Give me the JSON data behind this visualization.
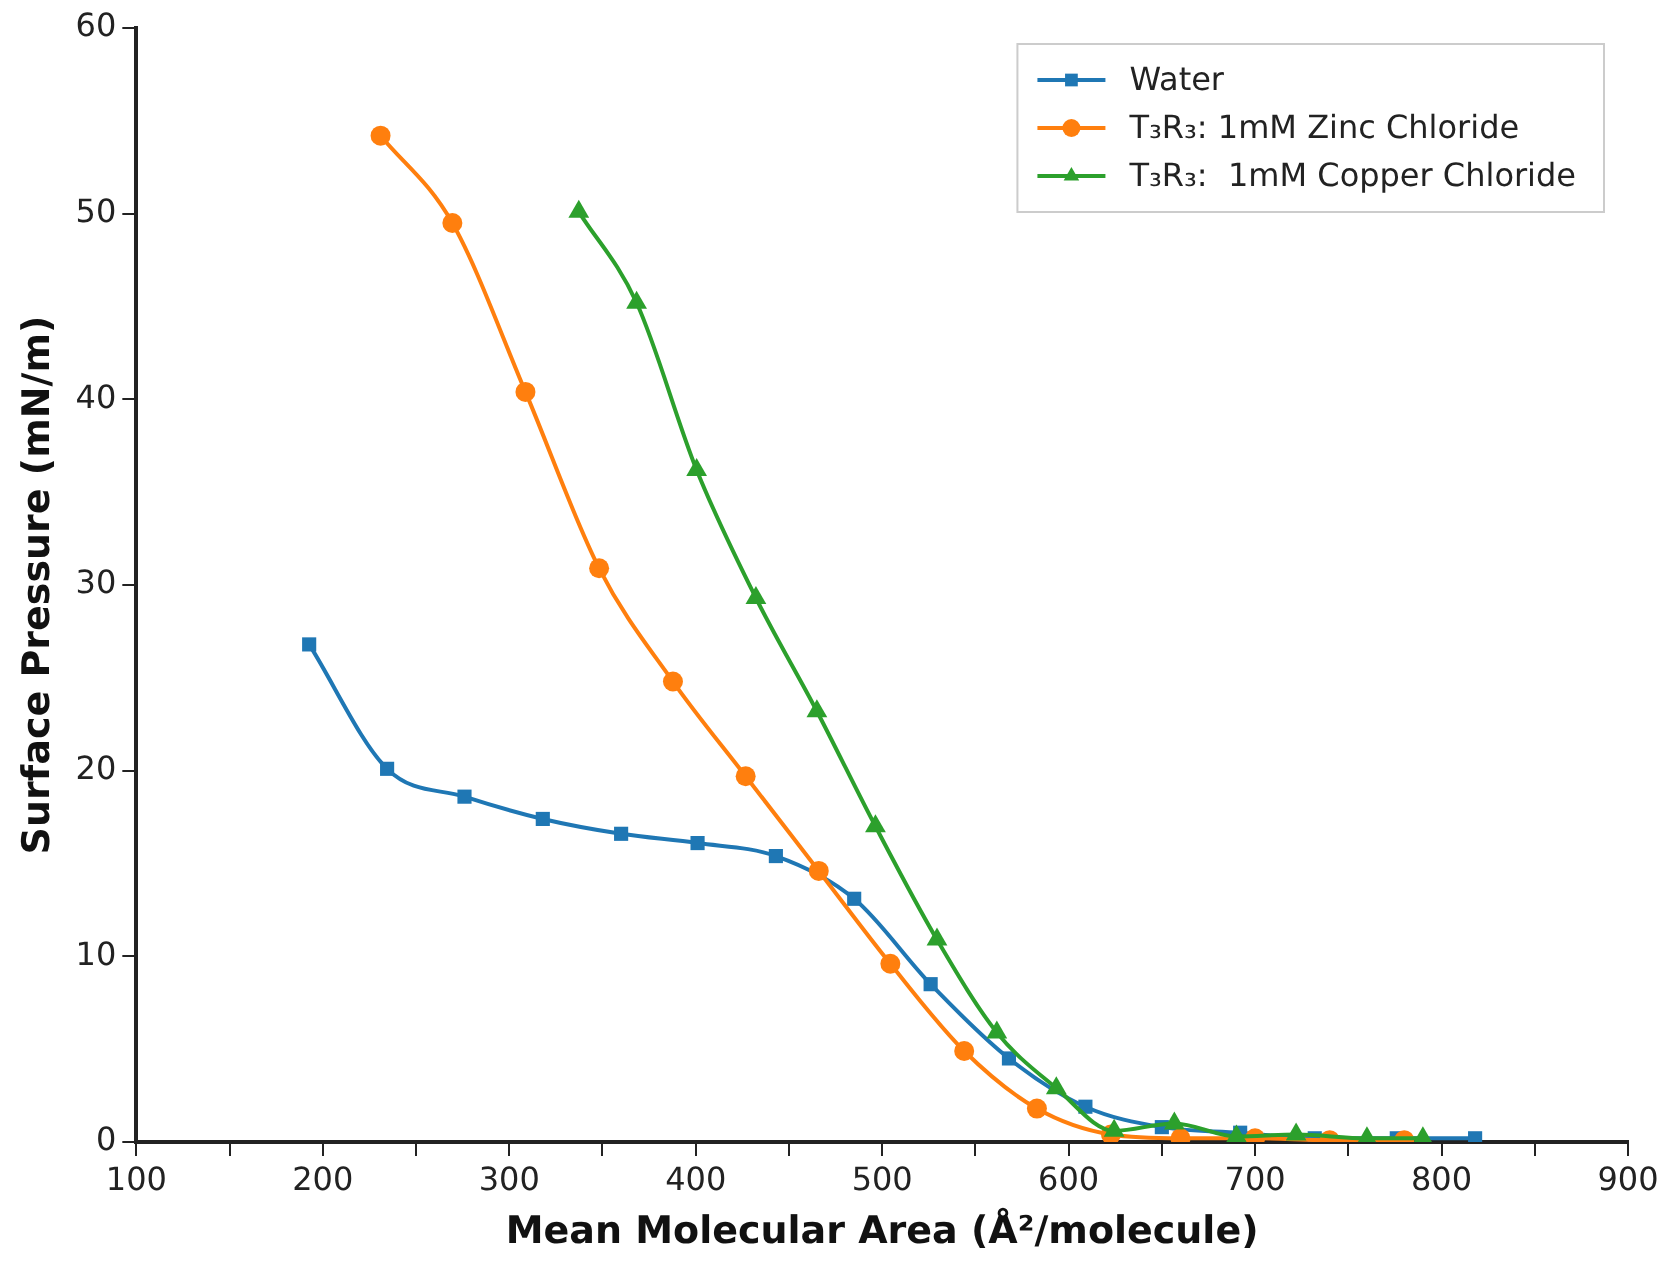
{
  "chart_data": {
    "type": "line",
    "xlabel": "Mean Molecular Area (Å²/molecule)",
    "ylabel": "Surface Pressure (mN/m)",
    "xlim": [
      100,
      900
    ],
    "ylim": [
      0,
      60
    ],
    "xticks": [
      100,
      {
        "value": 150,
        "label": null
      },
      200,
      {
        "value": 250,
        "label": null
      },
      300,
      {
        "value": 350,
        "label": null
      },
      400,
      {
        "value": 450,
        "label": null
      },
      500,
      {
        "value": 550,
        "label": null
      },
      600,
      {
        "value": 650,
        "label": null
      },
      700,
      {
        "value": 750,
        "label": null
      },
      800,
      {
        "value": 850,
        "label": null
      },
      900
    ],
    "yticks": [
      0,
      10,
      20,
      30,
      40,
      50,
      60
    ],
    "grid": false,
    "legend": "top right",
    "line_style": "solid",
    "series": [
      {
        "name": "Water",
        "color": "#1f77b4",
        "marker": "square",
        "x": [
          192.7,
          234.5,
          276,
          318,
          360,
          401,
          443,
          485,
          526,
          568,
          609,
          650,
          692,
          732,
          776,
          818
        ],
        "values": [
          26.8,
          20.1,
          18.6,
          17.4,
          16.6,
          16.1,
          15.4,
          13.1,
          8.5,
          4.5,
          1.9,
          0.8,
          0.5,
          0.2,
          0.2,
          0.2
        ]
      },
      {
        "name": "T₃R₃: 1mM Zinc Chloride",
        "color": "#ff7f0e",
        "marker": "circle",
        "x": [
          231,
          269.5,
          308.7,
          348.2,
          387.8,
          426.8,
          466,
          504.4,
          544,
          583,
          622.7,
          660,
          700,
          740,
          780
        ],
        "values": [
          54.2,
          49.5,
          40.4,
          30.9,
          24.8,
          19.7,
          14.6,
          9.6,
          4.9,
          1.8,
          0.4,
          0.2,
          0.2,
          0.1,
          0.1
        ]
      },
      {
        "name": "T₃R₃:  1mM Copper Chloride",
        "color": "#2ca02c",
        "marker": "triangle",
        "x": [
          337.3,
          368.3,
          400.5,
          432.3,
          465,
          496.4,
          529.4,
          561.5,
          593.4,
          624.4,
          656.7,
          690,
          722,
          760,
          790
        ],
        "values": [
          50.1,
          45.2,
          36.2,
          29.3,
          23.2,
          17,
          10.9,
          5.9,
          2.9,
          0.6,
          1,
          0.3,
          0.4,
          0.2,
          0.2
        ]
      }
    ]
  }
}
